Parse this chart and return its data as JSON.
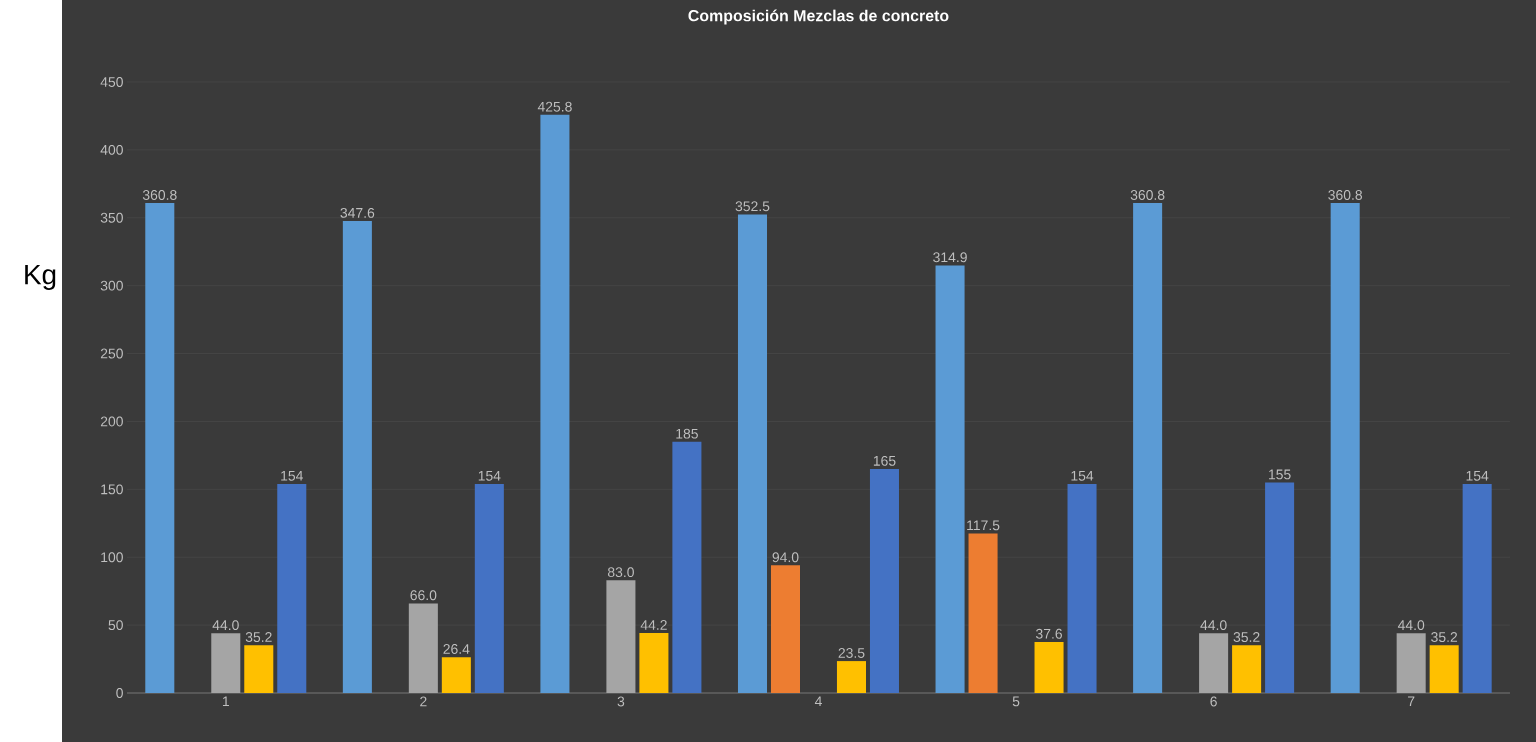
{
  "chart_data": {
    "type": "bar",
    "title": "Composición Mezclas de concreto",
    "ylabel": "Kg",
    "categories": [
      "1",
      "2",
      "3",
      "4",
      "5",
      "6",
      "7"
    ],
    "series": [
      {
        "color": "#5b9bd5",
        "values": [
          360.8,
          347.6,
          425.8,
          352.5,
          314.9,
          360.8,
          360.8
        ],
        "value_labels": [
          "360.8",
          "347.6",
          "425.8",
          "352.5",
          "314.9",
          "360.8",
          "360.8"
        ]
      },
      {
        "color": "#ed7d31",
        "values": [
          null,
          null,
          null,
          94.0,
          117.5,
          null,
          null
        ],
        "value_labels": [
          null,
          null,
          null,
          "94.0",
          "117.5",
          null,
          null
        ]
      },
      {
        "color": "#a5a5a5",
        "values": [
          44.0,
          66.0,
          83.0,
          null,
          null,
          44.0,
          44.0
        ],
        "value_labels": [
          "44.0",
          "66.0",
          "83.0",
          null,
          null,
          "44.0",
          "44.0"
        ]
      },
      {
        "color": "#ffc000",
        "values": [
          35.2,
          26.4,
          44.2,
          23.5,
          37.6,
          35.2,
          35.2
        ],
        "value_labels": [
          "35.2",
          "26.4",
          "44.2",
          "23.5",
          "37.6",
          "35.2",
          "35.2"
        ]
      },
      {
        "color": "#4472c4",
        "values": [
          154,
          154,
          185,
          165,
          154,
          155,
          154
        ],
        "value_labels": [
          "154",
          "154",
          "185",
          "165",
          "154",
          "155",
          "154"
        ]
      }
    ],
    "ylim": [
      0,
      450
    ],
    "yticks": [
      0,
      50,
      100,
      150,
      200,
      250,
      300,
      350,
      400,
      450
    ],
    "grid": "y"
  }
}
